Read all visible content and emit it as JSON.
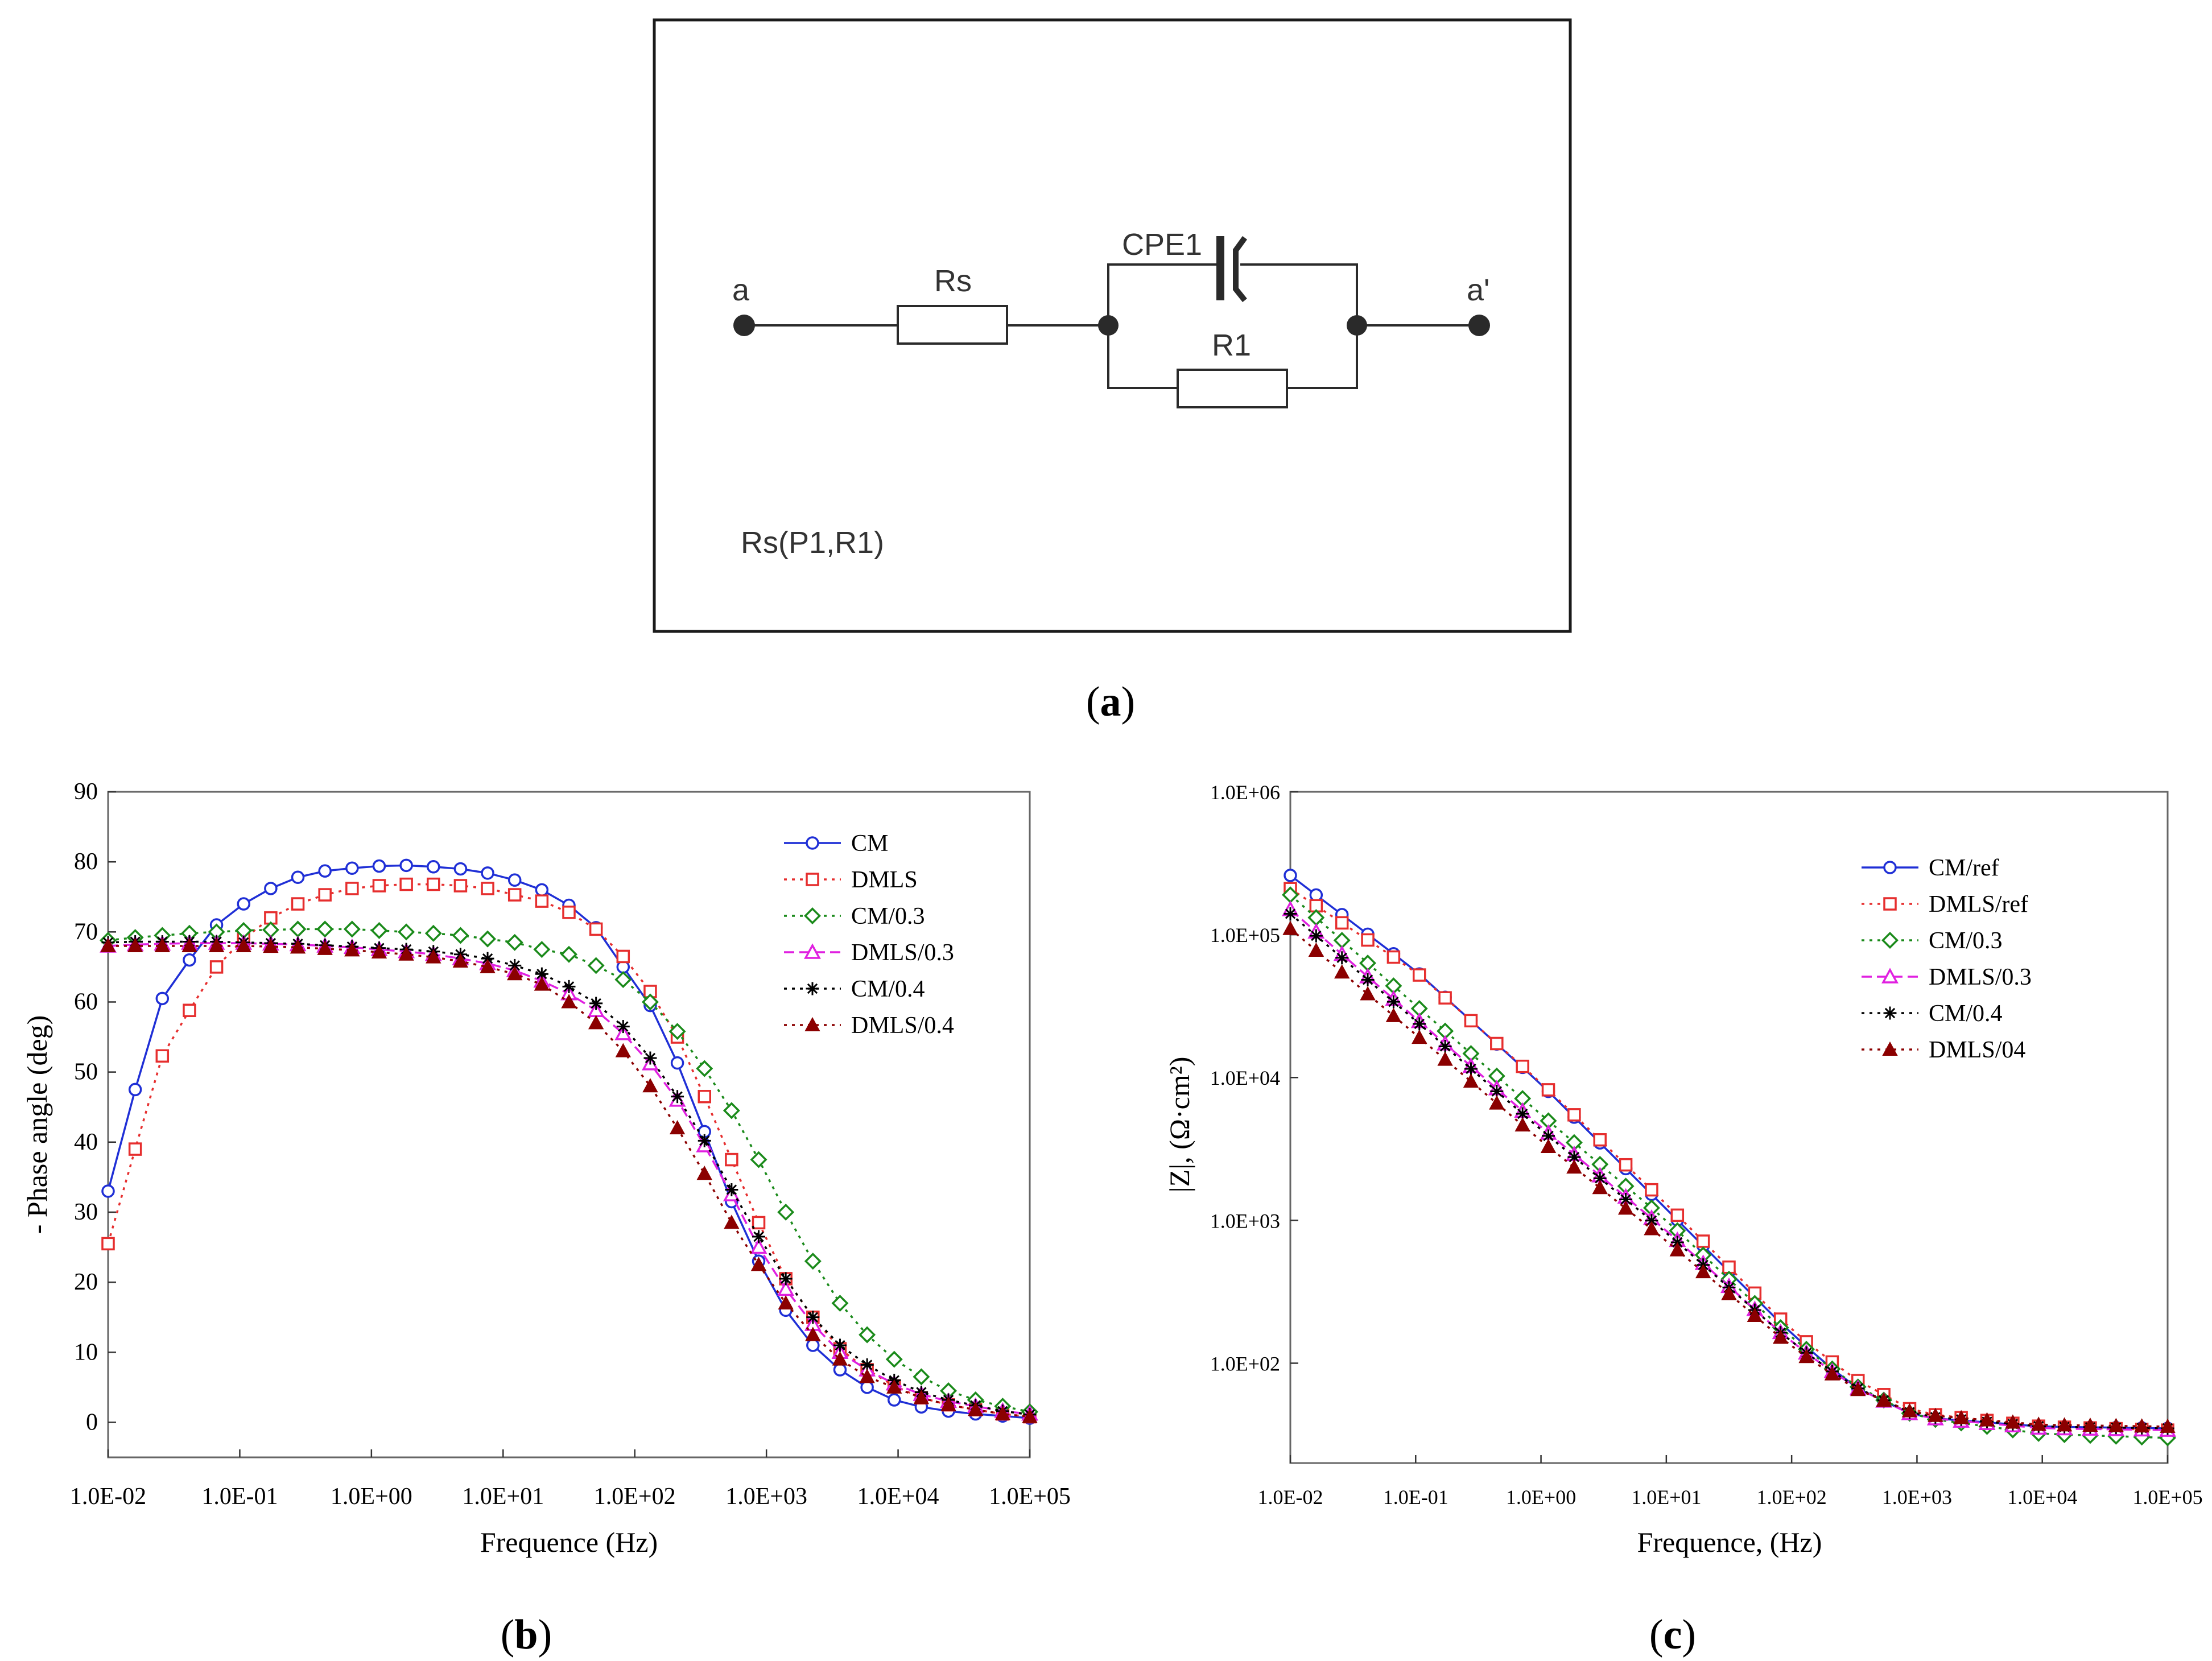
{
  "panels": {
    "a": {
      "caption": "a",
      "node_left": "a",
      "node_right": "a'",
      "rs_label": "Rs",
      "cpe_label": "CPE1",
      "r1_label": "R1",
      "circuit_code": "Rs(P1,R1)"
    },
    "b": {
      "caption": "b"
    },
    "c": {
      "caption": "c"
    }
  },
  "chart_data": [
    {
      "id": "phase",
      "type": "line",
      "xscale": "log",
      "xlim": [
        0.01,
        100000
      ],
      "ylim": [
        -5,
        90
      ],
      "xlabel": "Frequence (Hz)",
      "ylabel": "- Phase angle (deg)",
      "xticks": [
        {
          "v": 0.01,
          "label": "1.0E-02"
        },
        {
          "v": 0.1,
          "label": "1.0E-01"
        },
        {
          "v": 1,
          "label": "1.0E+00"
        },
        {
          "v": 10,
          "label": "1.0E+01"
        },
        {
          "v": 100,
          "label": "1.0E+02"
        },
        {
          "v": 1000,
          "label": "1.0E+03"
        },
        {
          "v": 10000,
          "label": "1.0E+04"
        },
        {
          "v": 100000,
          "label": "1.0E+05"
        }
      ],
      "yticks": [
        {
          "v": 0,
          "label": "0"
        },
        {
          "v": 10,
          "label": "10"
        },
        {
          "v": 20,
          "label": "20"
        },
        {
          "v": 30,
          "label": "30"
        },
        {
          "v": 40,
          "label": "40"
        },
        {
          "v": 50,
          "label": "50"
        },
        {
          "v": 60,
          "label": "60"
        },
        {
          "v": 70,
          "label": "70"
        },
        {
          "v": 80,
          "label": "80"
        },
        {
          "v": 90,
          "label": "90"
        }
      ],
      "legend_position": "top-right",
      "series": [
        {
          "name": "CM",
          "color": "#1f2fd6",
          "marker": "circle",
          "dash": "solid",
          "y": [
            33,
            47.5,
            60.5,
            66,
            71,
            74,
            76.2,
            77.8,
            78.7,
            79.1,
            79.4,
            79.5,
            79.3,
            79,
            78.4,
            77.4,
            76,
            73.8,
            70.6,
            65,
            59.5,
            51.3,
            41.5,
            31.5,
            23,
            16,
            11,
            7.5,
            5,
            3.2,
            2.2,
            1.6,
            1.2,
            0.9,
            0.6
          ]
        },
        {
          "name": "DMLS",
          "color": "#e62e2e",
          "marker": "square",
          "dash": "dot",
          "y": [
            25.5,
            39,
            52.3,
            58.8,
            65,
            69,
            72,
            74,
            75.3,
            76.2,
            76.6,
            76.8,
            76.8,
            76.6,
            76.2,
            75.3,
            74.4,
            72.8,
            70.4,
            66.5,
            61.5,
            55,
            46.5,
            37.5,
            28.5,
            20.5,
            15,
            10.5,
            7.5,
            5.2,
            3.5,
            2.5,
            1.8,
            1.2,
            0.8
          ]
        },
        {
          "name": "CM/0.3",
          "color": "#1a8a1a",
          "marker": "diamond",
          "dash": "dot",
          "y": [
            68.8,
            69.2,
            69.5,
            69.8,
            70,
            70.2,
            70.3,
            70.4,
            70.4,
            70.4,
            70.2,
            70,
            69.8,
            69.5,
            69,
            68.5,
            67.5,
            66.8,
            65.2,
            63.2,
            60,
            55.8,
            50.5,
            44.5,
            37.5,
            30,
            23,
            17,
            12.5,
            9,
            6.5,
            4.5,
            3.2,
            2.3,
            1.5
          ]
        },
        {
          "name": "DMLS/0.3",
          "color": "#e020e0",
          "marker": "triangle-open",
          "dash": "dash",
          "y": [
            68,
            68.2,
            68.3,
            68.4,
            68.4,
            68.4,
            68.3,
            68.2,
            68,
            67.8,
            67.5,
            67.2,
            66.8,
            66.2,
            65.5,
            64.5,
            63,
            61.2,
            58.8,
            55.5,
            51.2,
            46,
            39.5,
            32.5,
            25,
            19,
            14,
            10,
            7.5,
            5.5,
            4,
            3,
            2.3,
            1.6,
            1.2
          ]
        },
        {
          "name": "CM/0.4",
          "color": "#000000",
          "marker": "asterisk",
          "dash": "dot",
          "y": [
            68.5,
            68.6,
            68.6,
            68.6,
            68.6,
            68.5,
            68.4,
            68.3,
            68.1,
            67.9,
            67.7,
            67.5,
            67.2,
            66.8,
            66.2,
            65.2,
            64,
            62.2,
            59.8,
            56.5,
            52,
            46.5,
            40.2,
            33.2,
            26.5,
            20.5,
            15,
            11,
            8.2,
            6,
            4.3,
            3.2,
            2.4,
            1.6,
            1.1
          ]
        },
        {
          "name": "DMLS/0.4",
          "color": "#8b0000",
          "marker": "triangle-filled",
          "dash": "dot",
          "y": [
            68,
            68,
            68,
            68,
            68,
            68,
            67.9,
            67.8,
            67.6,
            67.4,
            67.1,
            66.8,
            66.4,
            65.8,
            65,
            64,
            62.5,
            60,
            57,
            53,
            48,
            42,
            35.5,
            28.5,
            22.5,
            17,
            12.5,
            9,
            6.5,
            5,
            3.5,
            2.5,
            1.8,
            1.2,
            0.8
          ]
        }
      ]
    },
    {
      "id": "modulus",
      "type": "line",
      "xscale": "log",
      "yscale": "log",
      "xlim": [
        0.01,
        100000
      ],
      "ylim": [
        20,
        1000000
      ],
      "xlabel": "Frequence, (Hz)",
      "ylabel": "|Z|, (Ω·cm²)",
      "xticks": [
        {
          "v": 0.01,
          "label": "1.0E-02"
        },
        {
          "v": 0.1,
          "label": "1.0E-01"
        },
        {
          "v": 1,
          "label": "1.0E+00"
        },
        {
          "v": 10,
          "label": "1.0E+01"
        },
        {
          "v": 100,
          "label": "1.0E+02"
        },
        {
          "v": 1000,
          "label": "1.0E+03"
        },
        {
          "v": 10000,
          "label": "1.0E+04"
        },
        {
          "v": 100000,
          "label": "1.0E+05"
        }
      ],
      "yticks": [
        {
          "v": 100,
          "label": "1.0E+02"
        },
        {
          "v": 1000,
          "label": "1.0E+03"
        },
        {
          "v": 10000,
          "label": "1.0E+04"
        },
        {
          "v": 100000,
          "label": "1.0E+05"
        },
        {
          "v": 1000000,
          "label": "1.0E+06"
        }
      ],
      "legend_position": "top-right",
      "series": [
        {
          "name": "CM/ref",
          "color": "#1f2fd6",
          "marker": "circle",
          "dash": "solid",
          "anchors": [
            [
              0.01,
              260000
            ],
            [
              0.1,
              56000
            ],
            [
              1,
              9000
            ],
            [
              10,
              1200
            ],
            [
              100,
              160
            ],
            [
              300,
              70
            ],
            [
              1000,
              42
            ],
            [
              10000,
              36
            ],
            [
              100000,
              35
            ]
          ]
        },
        {
          "name": "DMLS/ref",
          "color": "#e62e2e",
          "marker": "square",
          "dash": "dot",
          "anchors": [
            [
              0.01,
              210000
            ],
            [
              0.1,
              55000
            ],
            [
              1,
              9200
            ],
            [
              10,
              1300
            ],
            [
              100,
              170
            ],
            [
              300,
              80
            ],
            [
              1000,
              45
            ],
            [
              10000,
              36
            ],
            [
              100000,
              34
            ]
          ]
        },
        {
          "name": "CM/0.3",
          "color": "#1a8a1a",
          "marker": "diamond",
          "dash": "dot",
          "anchors": [
            [
              0.01,
              190000
            ],
            [
              0.1,
              32000
            ],
            [
              1,
              5500
            ],
            [
              10,
              1000
            ],
            [
              100,
              150
            ],
            [
              300,
              72
            ],
            [
              1000,
              42
            ],
            [
              10000,
              32
            ],
            [
              100000,
              30
            ]
          ]
        },
        {
          "name": "DMLS/0.3",
          "color": "#e020e0",
          "marker": "triangle-open",
          "dash": "dash",
          "anchors": [
            [
              0.01,
              150000
            ],
            [
              0.1,
              26000
            ],
            [
              1,
              4500
            ],
            [
              10,
              850
            ],
            [
              100,
              140
            ],
            [
              300,
              70
            ],
            [
              1000,
              42
            ],
            [
              10000,
              35
            ],
            [
              100000,
              34
            ]
          ]
        },
        {
          "name": "CM/0.4",
          "color": "#000000",
          "marker": "asterisk",
          "dash": "dot",
          "anchors": [
            [
              0.01,
              140000
            ],
            [
              0.1,
              25000
            ],
            [
              1,
              4300
            ],
            [
              10,
              820
            ],
            [
              100,
              140
            ],
            [
              300,
              70
            ],
            [
              1000,
              43
            ],
            [
              10000,
              36
            ],
            [
              100000,
              35
            ]
          ]
        },
        {
          "name": "DMLS/04",
          "color": "#8b0000",
          "marker": "triangle-filled",
          "dash": "dot",
          "anchors": [
            [
              0.01,
              110000
            ],
            [
              0.1,
              20000
            ],
            [
              1,
              3600
            ],
            [
              10,
              720
            ],
            [
              100,
              130
            ],
            [
              300,
              68
            ],
            [
              1000,
              44
            ],
            [
              10000,
              37
            ],
            [
              100000,
              36
            ]
          ]
        }
      ]
    }
  ]
}
